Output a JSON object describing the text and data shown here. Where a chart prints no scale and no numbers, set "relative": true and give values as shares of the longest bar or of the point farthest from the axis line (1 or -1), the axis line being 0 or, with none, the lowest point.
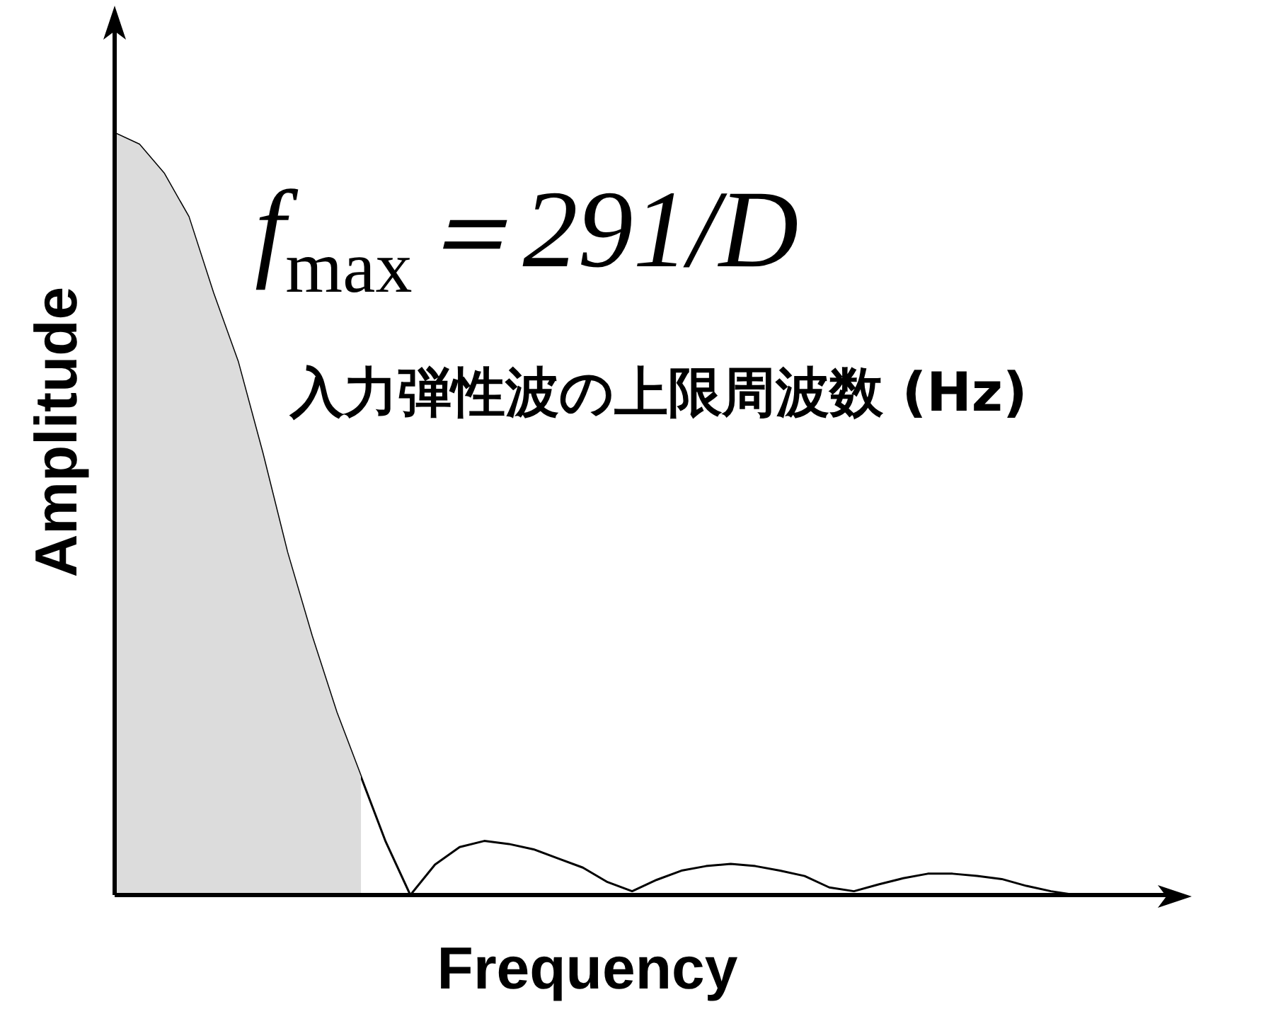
{
  "chart_data": {
    "type": "line",
    "relative": true,
    "xlabel": "Frequency",
    "ylabel": "Amplitude",
    "annotations": [
      "f$_{max}$＝291/D",
      "入力弾性波の上限周波数 (Hz)"
    ],
    "categories": [
      null,
      null,
      null,
      null,
      null,
      null,
      null,
      null,
      null,
      null,
      null,
      null,
      null,
      null,
      null,
      null,
      null,
      null,
      null,
      null,
      null,
      null,
      null,
      null,
      null,
      null,
      null,
      null,
      null,
      null,
      null,
      null,
      null,
      null,
      null,
      null,
      null,
      null,
      null,
      null
    ],
    "legend": false,
    "marker": "none",
    "series": [
      {
        "type": "area",
        "color": "#dcdcdc",
        "values": [
          1.0,
          0.985,
          0.947,
          0.89,
          0.79,
          0.7,
          0.58,
          0.45,
          0.34,
          0.24,
          0.155,
          null,
          null,
          null,
          null,
          null,
          null,
          null,
          null,
          null,
          null,
          null,
          null,
          null,
          null,
          null,
          null,
          null,
          null,
          null,
          null,
          null,
          null,
          null,
          null,
          null,
          null,
          null,
          null,
          null
        ]
      },
      {
        "color": "#000000",
        "values": [
          1.0,
          0.985,
          0.947,
          0.89,
          0.79,
          0.7,
          0.58,
          0.45,
          0.34,
          0.24,
          0.155,
          0.07,
          0.0,
          0.04,
          0.063,
          0.071,
          0.067,
          0.06,
          0.048,
          0.036,
          0.017,
          0.005,
          0.02,
          0.032,
          0.038,
          0.041,
          0.038,
          0.032,
          0.025,
          0.01,
          0.005,
          0.014,
          0.022,
          0.028,
          0.028,
          0.025,
          0.021,
          0.012,
          0.005,
          0.0
        ]
      }
    ]
  }
}
